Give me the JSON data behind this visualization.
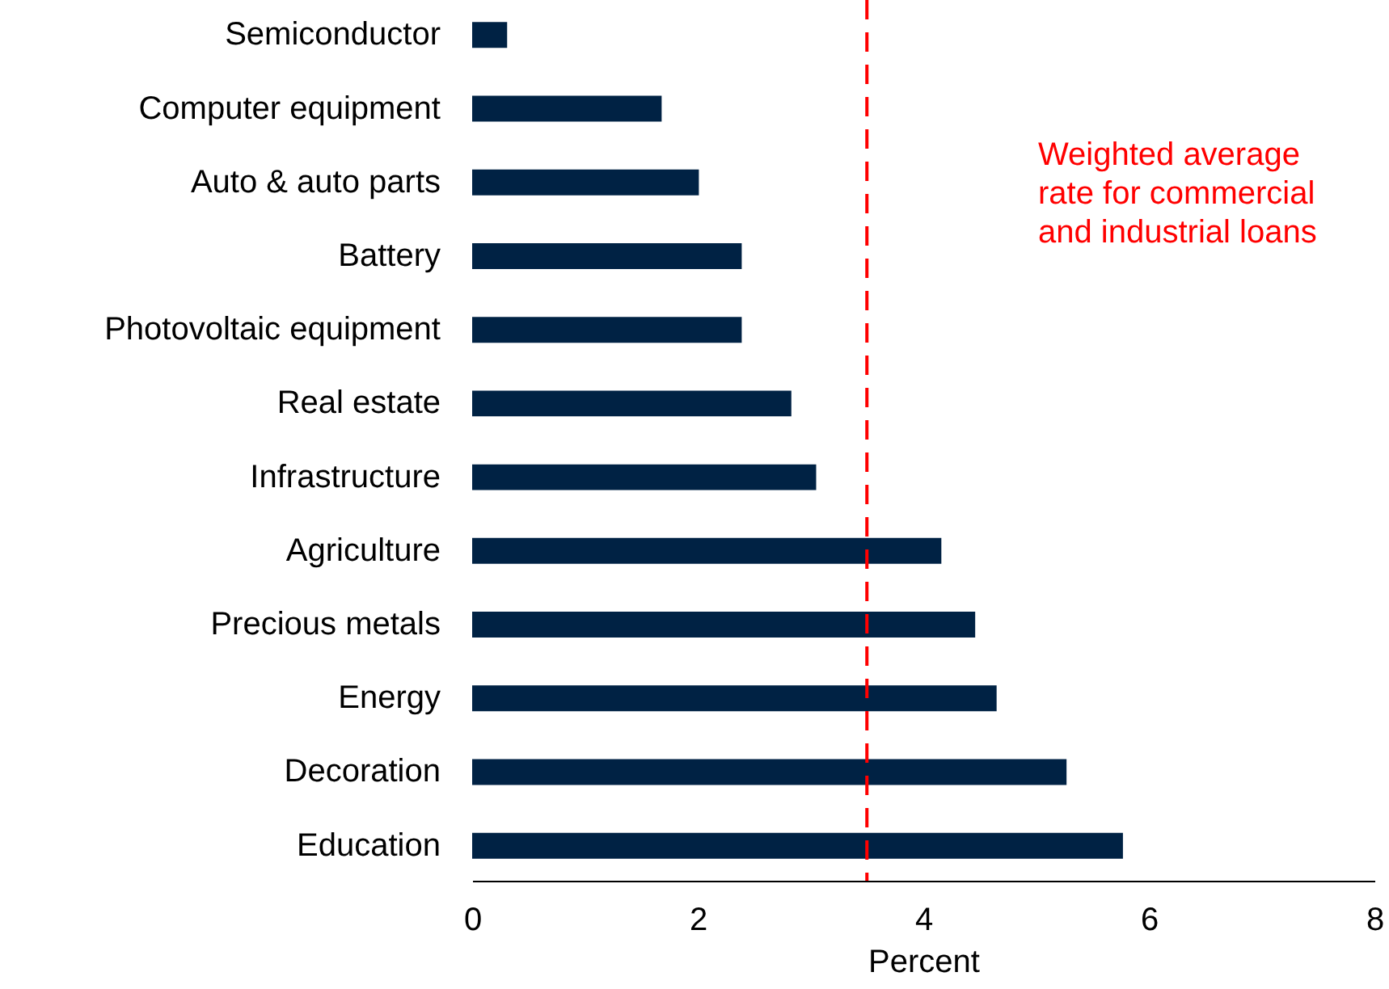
{
  "chart_data": {
    "type": "bar",
    "orientation": "horizontal",
    "xlabel": "Percent",
    "categories": [
      "Semiconductor",
      "Computer equipment",
      "Auto & auto parts",
      "Battery",
      "Photovoltaic equipment",
      "Real estate",
      "Infrastructure",
      "Agriculture",
      "Precious metals",
      "Energy",
      "Decoration",
      "Education"
    ],
    "values": [
      0.31,
      1.68,
      2.01,
      2.39,
      2.39,
      2.83,
      3.05,
      4.16,
      4.46,
      4.65,
      5.27,
      5.77
    ],
    "color": "#002244",
    "xlim": [
      0,
      8
    ],
    "xticks": [
      0,
      2,
      4,
      6,
      8
    ],
    "grid": false,
    "ref_lines": [
      {
        "axis": "x",
        "value": 3.5,
        "label": "Weighted average rate for commercial and industrial loans",
        "color": "#ff0000",
        "line_style": "dashed"
      }
    ]
  }
}
